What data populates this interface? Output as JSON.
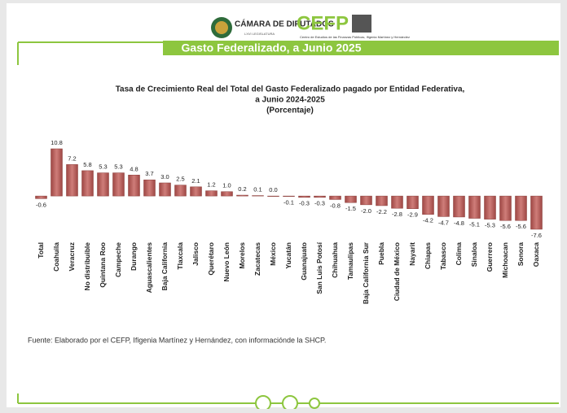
{
  "header": {
    "chamber": "CÁMARA DE DIPUTADOS",
    "legislature": "LXVI LEGISLATURA",
    "org": "CEFP",
    "org_full": "Centro de Estudios de las Finanzas Públicas, Ifigenia Martínez y Hernández",
    "banner": "Gasto Federalizado, a Junio 2025"
  },
  "chart_data": {
    "type": "bar",
    "title": [
      "Tasa de Crecimiento Real del Total del Gasto Federalizado pagado por Entidad Federativa,",
      "a Junio 2024-2025"
    ],
    "subtitle": "(Porcentaje)",
    "categories": [
      "Total",
      "Coahuila",
      "Veracruz",
      "No distribuible",
      "Quintana Roo",
      "Campeche",
      "Durango",
      "Aguascalientes",
      "Baja California",
      "Tlaxcala",
      "Jalisco",
      "Querétaro",
      "Nuevo León",
      "Morelos",
      "Zacatecas",
      "México",
      "Yucatán",
      "Guanajuato",
      "San Luis Potosí",
      "Chihuahua",
      "Tamaulipas",
      "Baja California Sur",
      "Puebla",
      "Ciudad de México",
      "Nayarit",
      "Chiapas",
      "Tabasco",
      "Colima",
      "Sinaloa",
      "Guerrero",
      "Michoacan",
      "Sonora",
      "Oaxaca"
    ],
    "values": [
      -0.6,
      10.8,
      7.2,
      5.8,
      5.3,
      5.3,
      4.8,
      3.7,
      3.0,
      2.5,
      2.1,
      1.2,
      1.0,
      0.2,
      0.1,
      0.0,
      -0.1,
      -0.3,
      -0.3,
      -0.8,
      -1.5,
      -2.0,
      -2.2,
      -2.8,
      -2.9,
      -4.2,
      -4.7,
      -4.8,
      -5.1,
      -5.3,
      -5.6,
      -5.6,
      -7.6
    ],
    "value_labels": [
      "-0.6",
      "10.8",
      "7.2",
      "5.8",
      "5.3",
      "5.3",
      "4.8",
      "3.7",
      "3.0",
      "2.5",
      "2.1",
      "1.2",
      "1.0",
      "0.2",
      "0.1",
      "0.0",
      "-0.1",
      "-0.3",
      "-0.3",
      "-0.8",
      "-1.5",
      "-2.0",
      "-2.2",
      "-2.8",
      "-2.9",
      "-4.2",
      "-4.7",
      "-4.8",
      "-5.1",
      "-5.3",
      "-5.6",
      "-5.6",
      "-7.6"
    ],
    "color": "#b55a57"
  },
  "source": "Fuente: Elaborado por el CEFP, Ifigenia Martínez y Hernández, con informaciónde la SHCP."
}
